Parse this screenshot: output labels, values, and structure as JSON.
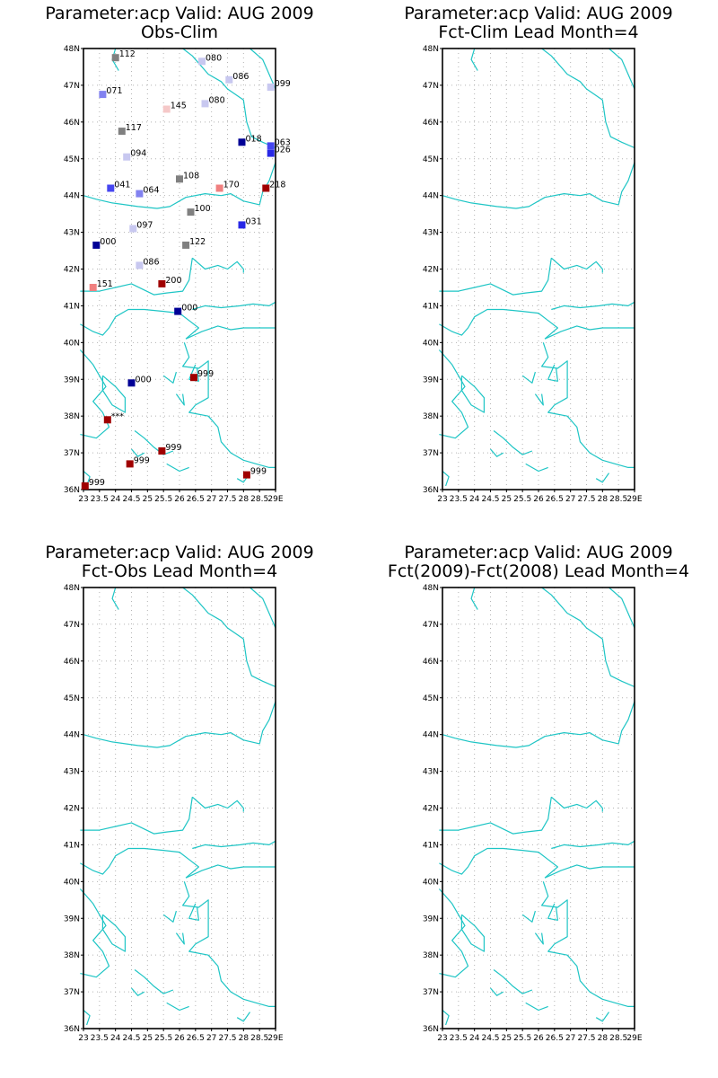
{
  "map": {
    "lon_range": [
      23,
      29
    ],
    "lat_range": [
      36,
      48
    ],
    "x_ticks": [
      "23",
      "23.5",
      "24",
      "24.5",
      "25",
      "25.5",
      "26",
      "26.5",
      "27",
      "27.5",
      "28",
      "28.5",
      "29E"
    ],
    "y_ticks": [
      "36N",
      "37N",
      "38N",
      "39N",
      "40N",
      "41N",
      "42N",
      "43N",
      "44N",
      "45N",
      "46N",
      "47N",
      "48N"
    ],
    "grid": "dotted",
    "coast_color": "#1ec5c5"
  },
  "panels": [
    {
      "title_line1": "Parameter:acp Valid: AUG 2009",
      "title_line2": "Obs-Clim"
    },
    {
      "title_line1": "Parameter:acp Valid: AUG 2009",
      "title_line2": "Fct-Clim Lead Month=4"
    },
    {
      "title_line1": "Parameter:acp Valid: AUG 2009",
      "title_line2": "Fct-Obs Lead Month=4"
    },
    {
      "title_line1": "Parameter:acp Valid: AUG 2009",
      "title_line2": "Fct(2009)-Fct(2008) Lead Month=4"
    }
  ],
  "stations": [
    {
      "lon": 24.0,
      "lat": 47.75,
      "label": "112",
      "color": "#808080"
    },
    {
      "lon": 26.7,
      "lat": 47.65,
      "label": "080",
      "color": "#c8c8f0"
    },
    {
      "lon": 27.55,
      "lat": 47.15,
      "label": "086",
      "color": "#c8c8f0"
    },
    {
      "lon": 28.85,
      "lat": 46.95,
      "label": "099",
      "color": "#c8c8f0"
    },
    {
      "lon": 23.6,
      "lat": 46.75,
      "label": "071",
      "color": "#8282f0"
    },
    {
      "lon": 25.6,
      "lat": 46.35,
      "label": "145",
      "color": "#f5c8c8"
    },
    {
      "lon": 26.8,
      "lat": 46.5,
      "label": "080",
      "color": "#c8c8f0"
    },
    {
      "lon": 24.2,
      "lat": 45.75,
      "label": "117",
      "color": "#808080"
    },
    {
      "lon": 27.95,
      "lat": 45.45,
      "label": "018",
      "color": "#000096"
    },
    {
      "lon": 28.85,
      "lat": 45.35,
      "label": "063",
      "color": "#4646f0"
    },
    {
      "lon": 28.85,
      "lat": 45.15,
      "label": "026",
      "color": "#2828e6"
    },
    {
      "lon": 24.35,
      "lat": 45.05,
      "label": "094",
      "color": "#c8c8f0"
    },
    {
      "lon": 26.0,
      "lat": 44.45,
      "label": "108",
      "color": "#808080"
    },
    {
      "lon": 23.85,
      "lat": 44.2,
      "label": "041",
      "color": "#4646f0"
    },
    {
      "lon": 24.75,
      "lat": 44.05,
      "label": "064",
      "color": "#8282f0"
    },
    {
      "lon": 27.25,
      "lat": 44.2,
      "label": "170",
      "color": "#f08080"
    },
    {
      "lon": 28.7,
      "lat": 44.2,
      "label": "218",
      "color": "#a00000"
    },
    {
      "lon": 26.35,
      "lat": 43.55,
      "label": "100",
      "color": "#808080"
    },
    {
      "lon": 27.95,
      "lat": 43.2,
      "label": "031",
      "color": "#2828e6"
    },
    {
      "lon": 24.55,
      "lat": 43.1,
      "label": "097",
      "color": "#c8c8f0"
    },
    {
      "lon": 23.4,
      "lat": 42.65,
      "label": "000",
      "color": "#000096"
    },
    {
      "lon": 26.2,
      "lat": 42.65,
      "label": "122",
      "color": "#808080"
    },
    {
      "lon": 24.75,
      "lat": 42.1,
      "label": "086",
      "color": "#c8c8f0"
    },
    {
      "lon": 23.3,
      "lat": 41.5,
      "label": "151",
      "color": "#f08080"
    },
    {
      "lon": 25.45,
      "lat": 41.6,
      "label": "200",
      "color": "#a00000"
    },
    {
      "lon": 25.95,
      "lat": 40.85,
      "label": "000",
      "color": "#000096"
    },
    {
      "lon": 26.45,
      "lat": 39.05,
      "label": "999",
      "color": "#a00000"
    },
    {
      "lon": 24.5,
      "lat": 38.9,
      "label": "000",
      "color": "#000096"
    },
    {
      "lon": 23.75,
      "lat": 37.9,
      "label": "***",
      "color": "#a00000"
    },
    {
      "lon": 25.45,
      "lat": 37.05,
      "label": "999",
      "color": "#a00000"
    },
    {
      "lon": 24.45,
      "lat": 36.7,
      "label": "999",
      "color": "#a00000"
    },
    {
      "lon": 28.1,
      "lat": 36.4,
      "label": "999",
      "color": "#a00000"
    },
    {
      "lon": 23.05,
      "lat": 36.1,
      "label": "999",
      "color": "#a00000"
    }
  ]
}
